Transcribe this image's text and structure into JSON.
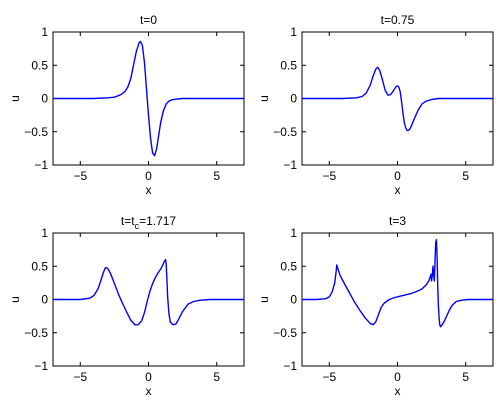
{
  "chart_data": [
    {
      "type": "line",
      "title": "t=0",
      "xlabel": "x",
      "ylabel": "u",
      "xlim": [
        -7,
        7
      ],
      "ylim": [
        -1,
        1
      ],
      "xticks": [
        {
          "v": -5,
          "label": "−5"
        },
        {
          "v": 0,
          "label": "0"
        },
        {
          "v": 5,
          "label": "5"
        }
      ],
      "yticks": [
        {
          "v": -1,
          "label": "−1"
        },
        {
          "v": -0.5,
          "label": "−0.5"
        },
        {
          "v": 0,
          "label": "0"
        },
        {
          "v": 0.5,
          "label": "0.5"
        },
        {
          "v": 1,
          "label": "1"
        }
      ],
      "series": [
        {
          "color": "#0000ff",
          "x": [
            -7,
            -4,
            -3,
            -2.5,
            -2,
            -1.7,
            -1.5,
            -1.3,
            -1.1,
            -0.9,
            -0.7,
            -0.6,
            -0.45,
            -0.3,
            -0.15,
            0,
            0.15,
            0.3,
            0.45,
            0.6,
            0.75,
            0.9,
            1.1,
            1.3,
            1.5,
            1.7,
            2.0,
            2.5,
            3,
            4,
            7
          ],
          "y": [
            0,
            0,
            0.01,
            0.02,
            0.06,
            0.11,
            0.18,
            0.3,
            0.5,
            0.7,
            0.83,
            0.86,
            0.8,
            0.55,
            0.15,
            -0.25,
            -0.6,
            -0.82,
            -0.86,
            -0.75,
            -0.55,
            -0.35,
            -0.18,
            -0.08,
            -0.04,
            -0.02,
            -0.01,
            0,
            0,
            0,
            0
          ]
        }
      ]
    },
    {
      "type": "line",
      "title": "t=0.75",
      "xlabel": "x",
      "ylabel": "u",
      "xlim": [
        -7,
        7
      ],
      "ylim": [
        -1,
        1
      ],
      "xticks": [
        {
          "v": -5,
          "label": "−5"
        },
        {
          "v": 0,
          "label": "0"
        },
        {
          "v": 5,
          "label": "5"
        }
      ],
      "yticks": [
        {
          "v": -1,
          "label": "−1"
        },
        {
          "v": -0.5,
          "label": "−0.5"
        },
        {
          "v": 0,
          "label": "0"
        },
        {
          "v": 0.5,
          "label": "0.5"
        },
        {
          "v": 1,
          "label": "1"
        }
      ],
      "series": [
        {
          "color": "#0000ff",
          "x": [
            -7,
            -4,
            -3,
            -2.6,
            -2.3,
            -2.0,
            -1.8,
            -1.6,
            -1.45,
            -1.3,
            -1.1,
            -0.9,
            -0.7,
            -0.5,
            -0.35,
            -0.2,
            -0.1,
            0,
            0.1,
            0.2,
            0.3,
            0.4,
            0.5,
            0.6,
            0.7,
            0.8,
            0.9,
            1.0,
            1.2,
            1.5,
            1.8,
            2.1,
            2.5,
            3,
            4,
            7
          ],
          "y": [
            0,
            0,
            0.01,
            0.03,
            0.08,
            0.2,
            0.33,
            0.44,
            0.47,
            0.42,
            0.28,
            0.12,
            0.05,
            0.06,
            0.1,
            0.15,
            0.18,
            0.19,
            0.17,
            0.1,
            -0.05,
            -0.22,
            -0.36,
            -0.44,
            -0.48,
            -0.48,
            -0.46,
            -0.42,
            -0.32,
            -0.18,
            -0.08,
            -0.04,
            -0.015,
            0,
            0,
            0
          ]
        }
      ]
    },
    {
      "type": "line",
      "title": "t=t",
      "title_sub": "c",
      "title_tail": "=1.717",
      "xlabel": "x",
      "ylabel": "u",
      "xlim": [
        -7,
        7
      ],
      "ylim": [
        -1,
        1
      ],
      "xticks": [
        {
          "v": -5,
          "label": "−5"
        },
        {
          "v": 0,
          "label": "0"
        },
        {
          "v": 5,
          "label": "5"
        }
      ],
      "yticks": [
        {
          "v": -1,
          "label": "−1"
        },
        {
          "v": -0.5,
          "label": "−0.5"
        },
        {
          "v": 0,
          "label": "0"
        },
        {
          "v": 0.5,
          "label": "0.5"
        },
        {
          "v": 1,
          "label": "1"
        }
      ],
      "series": [
        {
          "color": "#0000ff",
          "x": [
            -7,
            -5,
            -4.3,
            -4.0,
            -3.7,
            -3.5,
            -3.3,
            -3.15,
            -3.0,
            -2.8,
            -2.5,
            -2.2,
            -1.9,
            -1.6,
            -1.3,
            -1.0,
            -0.75,
            -0.5,
            -0.3,
            -0.1,
            0.1,
            0.3,
            0.5,
            0.7,
            0.9,
            1.05,
            1.15,
            1.25,
            1.3,
            1.35,
            1.4,
            1.5,
            1.6,
            1.8,
            2.0,
            2.2,
            2.5,
            2.9,
            3.3,
            3.8,
            4.5,
            7
          ],
          "y": [
            0,
            0,
            0.02,
            0.06,
            0.16,
            0.28,
            0.41,
            0.48,
            0.47,
            0.4,
            0.24,
            0.08,
            -0.06,
            -0.19,
            -0.31,
            -0.38,
            -0.38,
            -0.32,
            -0.2,
            -0.03,
            0.12,
            0.24,
            0.33,
            0.4,
            0.46,
            0.52,
            0.57,
            0.6,
            0.52,
            0.3,
            0.05,
            -0.22,
            -0.34,
            -0.38,
            -0.37,
            -0.3,
            -0.18,
            -0.07,
            -0.03,
            -0.01,
            0,
            0
          ]
        }
      ]
    },
    {
      "type": "line",
      "title": "t=3",
      "xlabel": "x",
      "ylabel": "u",
      "xlim": [
        -7,
        7
      ],
      "ylim": [
        -1,
        1
      ],
      "xticks": [
        {
          "v": -5,
          "label": "−5"
        },
        {
          "v": 0,
          "label": "0"
        },
        {
          "v": 5,
          "label": "5"
        }
      ],
      "yticks": [
        {
          "v": -1,
          "label": "−1"
        },
        {
          "v": -0.5,
          "label": "−0.5"
        },
        {
          "v": 0,
          "label": "0"
        },
        {
          "v": 0.5,
          "label": "0.5"
        },
        {
          "v": 1,
          "label": "1"
        }
      ],
      "series": [
        {
          "color": "#0000ff",
          "x": [
            -7,
            -6,
            -5.3,
            -5.0,
            -4.8,
            -4.6,
            -4.5,
            -4.45,
            -4.35,
            -4.2,
            -4.0,
            -3.6,
            -3.2,
            -2.8,
            -2.4,
            -2.0,
            -1.8,
            -1.6,
            -1.4,
            -1.2,
            -1.0,
            -0.6,
            -0.2,
            0.2,
            0.6,
            1.0,
            1.4,
            1.8,
            2.1,
            2.3,
            2.4,
            2.45,
            2.5,
            2.55,
            2.6,
            2.65,
            2.7,
            2.75,
            2.8,
            2.85,
            2.9,
            2.95,
            3.0,
            3.05,
            3.1,
            3.15,
            3.2,
            3.3,
            3.45,
            3.6,
            3.8,
            4.0,
            4.3,
            4.7,
            5.2,
            7
          ],
          "y": [
            0,
            0,
            0.01,
            0.04,
            0.11,
            0.25,
            0.42,
            0.52,
            0.45,
            0.36,
            0.28,
            0.13,
            -0.02,
            -0.15,
            -0.27,
            -0.36,
            -0.38,
            -0.34,
            -0.23,
            -0.12,
            -0.06,
            0,
            0.03,
            0.05,
            0.07,
            0.09,
            0.12,
            0.16,
            0.22,
            0.28,
            0.34,
            0.38,
            0.28,
            0.36,
            0.5,
            0.38,
            0.28,
            0.6,
            0.85,
            0.9,
            0.65,
            0.2,
            -0.1,
            -0.28,
            -0.38,
            -0.41,
            -0.4,
            -0.37,
            -0.32,
            -0.25,
            -0.16,
            -0.09,
            -0.03,
            -0.01,
            0,
            0
          ]
        }
      ]
    }
  ]
}
